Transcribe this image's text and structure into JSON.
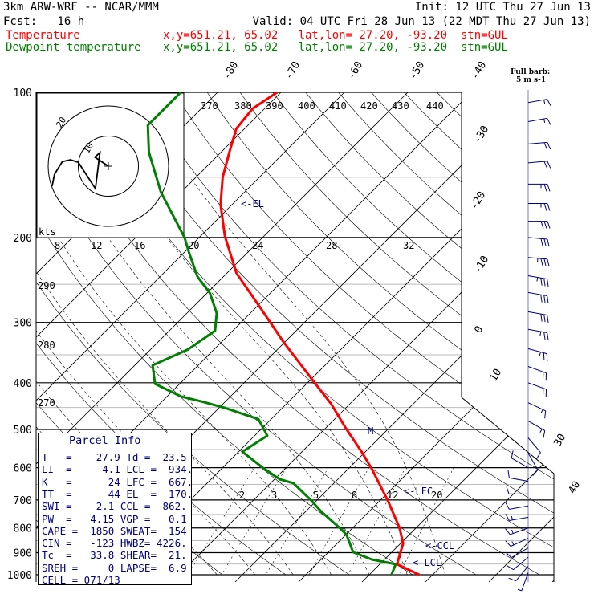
{
  "header": {
    "model": "3km ARW-WRF -- NCAR/MMM",
    "init": "Init: 12 UTC Thu 27 Jun 13",
    "fcst": "Fcst:   16 h",
    "valid": "Valid: 04 UTC Fri 28 Jun 13 (22 MDT Thu 27 Jun 13)",
    "temp_label": "Temperature",
    "temp_info": "x,y=651.21, 65.02   lat,lon= 27.20, -93.20  stn=GUL",
    "dew_label": "Dewpoint temperature",
    "dew_info": "x,y=651.21, 65.02   lat,lon= 27.20, -93.20  stn=GUL",
    "barb_note_1": "Full barb:",
    "barb_note_2": "5 m s-1"
  },
  "colors": {
    "temperature": "#ff0000",
    "dewpoint": "#008000",
    "annotation": "#000080"
  },
  "parcel_info": {
    "title": "Parcel Info",
    "rows": [
      "T   =    27.9 Td =  23.5",
      "LI  =    -4.1 LCL =  934.",
      "K   =      24 LFC =  667.",
      "TT  =      44 EL  =  170.",
      "SWI =    2.1 CCL =  862.",
      "PW  =   4.15 VGP =   0.1",
      "CAPE =  1850 SWEAT=  154",
      "CIN =   -123 HWBZ= 4226.",
      "Tc  =   33.8 SHEAR=  21.",
      "SREH =     0 LAPSE=  6.9",
      "CELL = 071/13"
    ]
  },
  "chart_data": {
    "type": "line",
    "title": "Skew-T log-P sounding",
    "ylabel": "Pressure (hPa)",
    "xlabel": "Temperature (C)",
    "pressure_ticks": [
      "100",
      "200",
      "300",
      "400",
      "500",
      "600",
      "700",
      "800",
      "900",
      "1000"
    ],
    "isotherm_labels_top": [
      "-80",
      "-70",
      "-60",
      "-50",
      "-40"
    ],
    "isotherm_labels_right": [
      "-30",
      "-20",
      "-10",
      "0",
      "10",
      "30",
      "40"
    ],
    "theta_e_labels": [
      "370",
      "380",
      "390",
      "400",
      "410",
      "420",
      "430",
      "440"
    ],
    "dry_adiabat_labels": [
      "290",
      "280",
      "270"
    ],
    "mixing_ratio_labels_upper": [
      "8",
      "12",
      "16",
      "20",
      "24",
      "28",
      "32"
    ],
    "mixing_ratio_labels_lower": [
      "2",
      "3",
      "5",
      "8",
      "12",
      "20"
    ],
    "hodograph": {
      "unit_label": "kts",
      "ring_labels": [
        "10",
        "20"
      ],
      "points_kts": [
        [
          0,
          0
        ],
        [
          -4.5,
          3
        ],
        [
          -2.8,
          4.5
        ],
        [
          -4.3,
          -7.5
        ],
        [
          -7.2,
          -3
        ],
        [
          -10,
          1.3
        ],
        [
          -12.6,
          2.1
        ],
        [
          -15.3,
          1.5
        ],
        [
          -17.9,
          -2.7
        ],
        [
          -18.7,
          -6.6
        ]
      ]
    },
    "levels": {
      "el": "<-EL",
      "lfc": "<-LFC",
      "ccl": "<-CCL",
      "lcl": "<-LCL",
      "marker": "M"
    },
    "series": [
      {
        "name": "Temperature",
        "points_p_T": [
          [
            1000,
            27.9
          ],
          [
            951,
            22.7
          ],
          [
            861,
            20.4
          ],
          [
            798,
            17.3
          ],
          [
            700,
            11.1
          ],
          [
            601,
            3.5
          ],
          [
            556,
            -0.6
          ],
          [
            496,
            -6.9
          ],
          [
            442,
            -13.0
          ],
          [
            402,
            -18.6
          ],
          [
            330,
            -30.1
          ],
          [
            276,
            -40.0
          ],
          [
            237,
            -48.5
          ],
          [
            199,
            -56.1
          ],
          [
            171,
            -61.8
          ],
          [
            150,
            -65.8
          ],
          [
            133,
            -68.7
          ],
          [
            119,
            -71.3
          ],
          [
            108,
            -71.9
          ],
          [
            100,
            -70.6
          ]
        ]
      },
      {
        "name": "Dewpoint temperature",
        "points_p_T": [
          [
            1000,
            23.5
          ],
          [
            951,
            22.5
          ],
          [
            930,
            18.0
          ],
          [
            898,
            13.9
          ],
          [
            826,
            10.1
          ],
          [
            798,
            7.8
          ],
          [
            739,
            2.4
          ],
          [
            700,
            -1.0
          ],
          [
            646,
            -6.4
          ],
          [
            634,
            -9.2
          ],
          [
            599,
            -13.8
          ],
          [
            556,
            -19.4
          ],
          [
            515,
            -18.0
          ],
          [
            476,
            -22.0
          ],
          [
            451,
            -29.1
          ],
          [
            437,
            -33.9
          ],
          [
            427,
            -37.8
          ],
          [
            402,
            -43.9
          ],
          [
            368,
            -47.2
          ],
          [
            341,
            -44.1
          ],
          [
            312,
            -42.8
          ],
          [
            287,
            -45.3
          ],
          [
            261,
            -49.5
          ],
          [
            241,
            -54.1
          ],
          [
            215,
            -59.2
          ],
          [
            200,
            -62.3
          ],
          [
            161,
            -73.2
          ],
          [
            133,
            -81.4
          ],
          [
            117,
            -85.8
          ],
          [
            100,
            -85.8
          ]
        ]
      }
    ],
    "wind_barbs": [
      {
        "p": 105,
        "spd_kts": 15,
        "dir": 80
      },
      {
        "p": 115,
        "spd_kts": 15,
        "dir": 80
      },
      {
        "p": 128,
        "spd_kts": 20,
        "dir": 85
      },
      {
        "p": 140,
        "spd_kts": 20,
        "dir": 85
      },
      {
        "p": 155,
        "spd_kts": 25,
        "dir": 90
      },
      {
        "p": 170,
        "spd_kts": 25,
        "dir": 90
      },
      {
        "p": 185,
        "spd_kts": 30,
        "dir": 90
      },
      {
        "p": 200,
        "spd_kts": 30,
        "dir": 95
      },
      {
        "p": 220,
        "spd_kts": 35,
        "dir": 95
      },
      {
        "p": 240,
        "spd_kts": 35,
        "dir": 100
      },
      {
        "p": 260,
        "spd_kts": 30,
        "dir": 100
      },
      {
        "p": 285,
        "spd_kts": 30,
        "dir": 100
      },
      {
        "p": 310,
        "spd_kts": 25,
        "dir": 100
      },
      {
        "p": 340,
        "spd_kts": 25,
        "dir": 105
      },
      {
        "p": 370,
        "spd_kts": 20,
        "dir": 110
      },
      {
        "p": 400,
        "spd_kts": 20,
        "dir": 110
      },
      {
        "p": 440,
        "spd_kts": 15,
        "dir": 115
      },
      {
        "p": 480,
        "spd_kts": 15,
        "dir": 120
      },
      {
        "p": 520,
        "spd_kts": 10,
        "dir": 140
      },
      {
        "p": 560,
        "spd_kts": 10,
        "dir": 150
      },
      {
        "p": 600,
        "spd_kts": 10,
        "dir": 300
      },
      {
        "p": 640,
        "spd_kts": 10,
        "dir": 280
      },
      {
        "p": 680,
        "spd_kts": 10,
        "dir": 270
      },
      {
        "p": 720,
        "spd_kts": 10,
        "dir": 260
      },
      {
        "p": 760,
        "spd_kts": 15,
        "dir": 260
      },
      {
        "p": 800,
        "spd_kts": 15,
        "dir": 250
      },
      {
        "p": 840,
        "spd_kts": 15,
        "dir": 245
      },
      {
        "p": 880,
        "spd_kts": 10,
        "dir": 240
      },
      {
        "p": 920,
        "spd_kts": 10,
        "dir": 230
      },
      {
        "p": 960,
        "spd_kts": 10,
        "dir": 220
      },
      {
        "p": 990,
        "spd_kts": 5,
        "dir": 200
      }
    ]
  }
}
